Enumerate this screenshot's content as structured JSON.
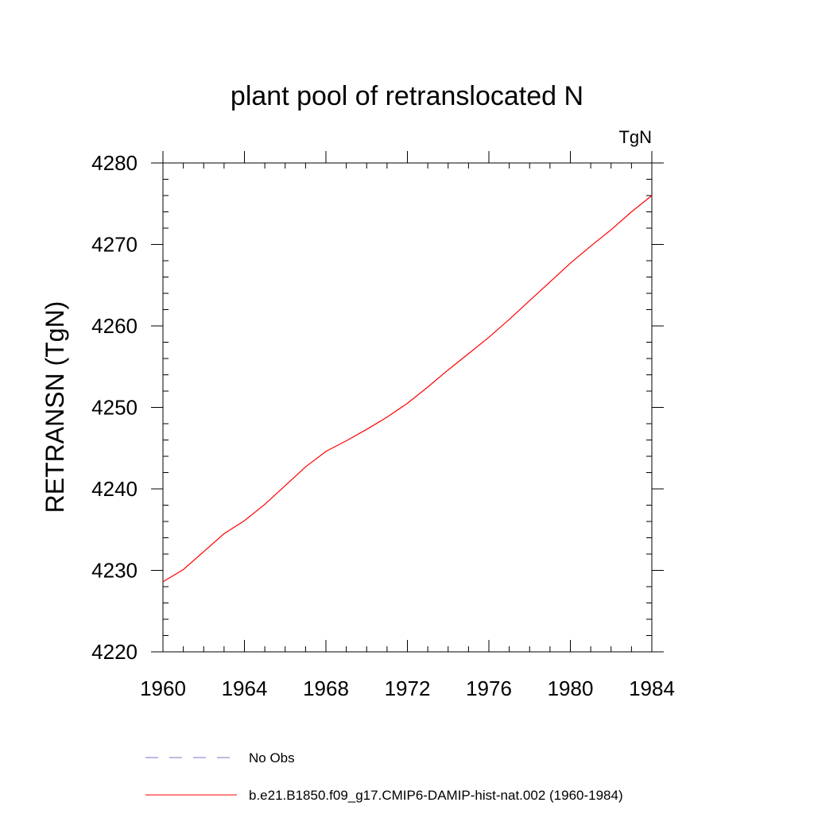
{
  "chart_data": {
    "type": "line",
    "title": "plant pool of retranslocated N",
    "units_label": "TgN",
    "ylabel": "RETRANSN  (TgN)",
    "xlabel": "",
    "xlim": [
      1960,
      1984
    ],
    "ylim": [
      4220,
      4280
    ],
    "xticks": [
      1960,
      1964,
      1968,
      1972,
      1976,
      1980,
      1984
    ],
    "yticks": [
      4220,
      4230,
      4240,
      4250,
      4260,
      4270,
      4280
    ],
    "x_minor_step": 1,
    "y_minor_step": 2,
    "grid": false,
    "legend_position": "bottom",
    "series": [
      {
        "name": "No Obs",
        "color": "#7b74c9",
        "dash": "dashed",
        "values": []
      },
      {
        "name": "b.e21.B1850.f09_g17.CMIP6-DAMIP-hist-nat.002 (1960-1984)",
        "color": "#ff0000",
        "dash": "solid",
        "x": [
          1960,
          1961,
          1962,
          1963,
          1964,
          1965,
          1966,
          1967,
          1968,
          1969,
          1970,
          1971,
          1972,
          1973,
          1974,
          1975,
          1976,
          1977,
          1978,
          1979,
          1980,
          1981,
          1982,
          1983,
          1984
        ],
        "values": [
          4228.6,
          4230.1,
          4232.3,
          4234.5,
          4236.1,
          4238.1,
          4240.4,
          4242.7,
          4244.6,
          4245.9,
          4247.3,
          4248.8,
          4250.5,
          4252.5,
          4254.6,
          4256.6,
          4258.6,
          4260.8,
          4263.1,
          4265.4,
          4267.7,
          4269.8,
          4271.8,
          4274.0,
          4276.0
        ]
      }
    ]
  }
}
